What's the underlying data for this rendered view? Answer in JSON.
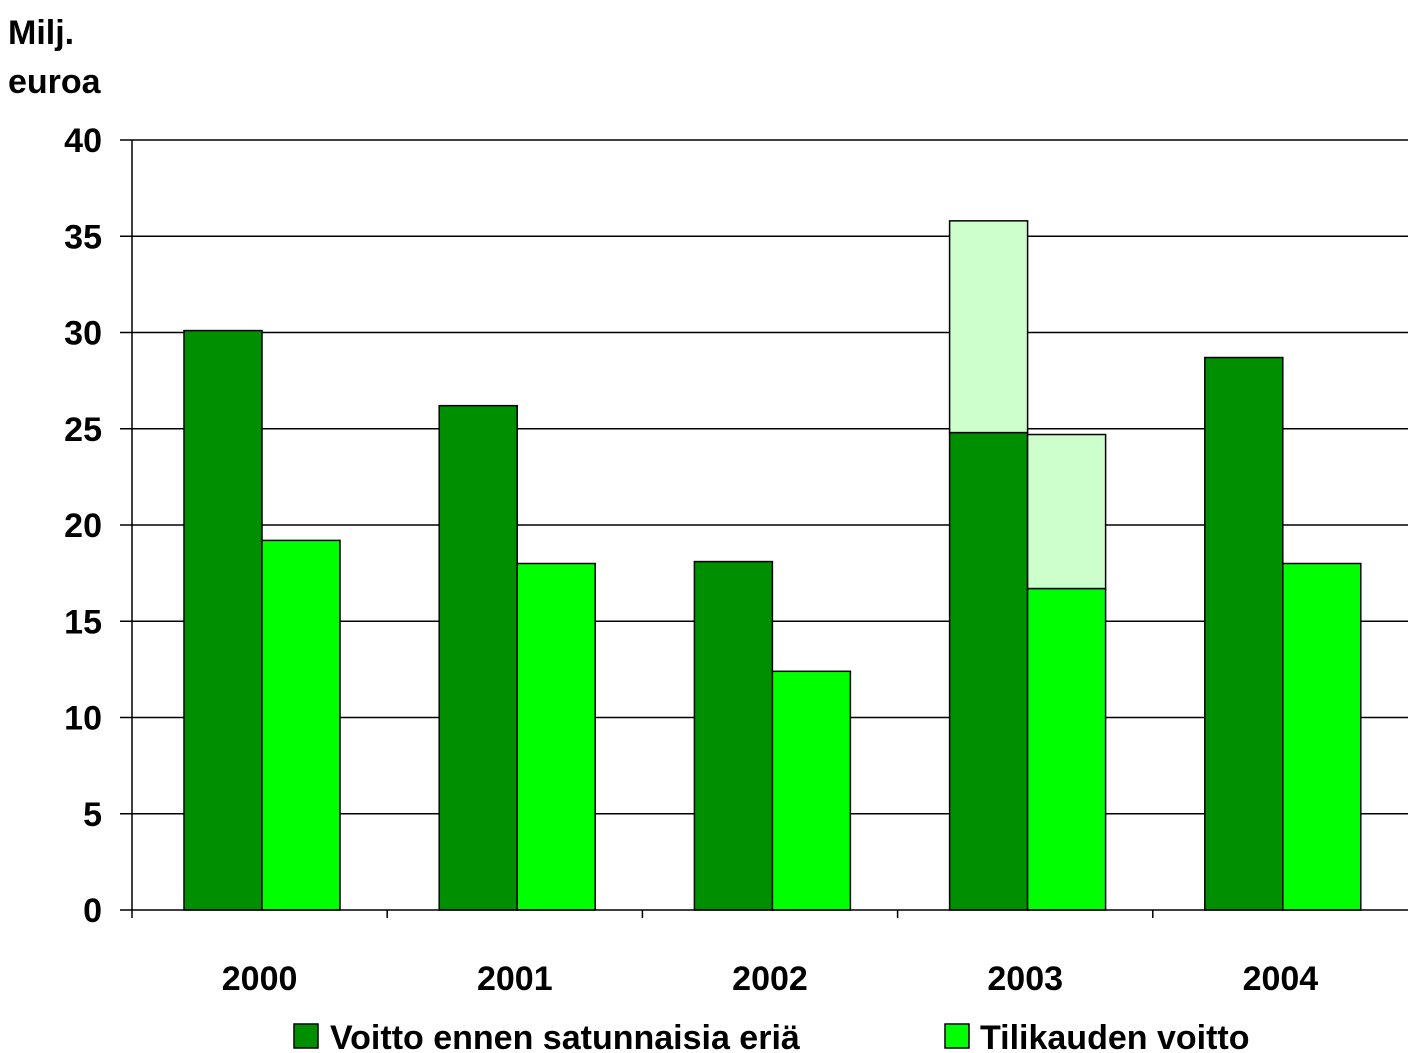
{
  "chart_data": {
    "type": "bar",
    "ylabel": [
      "Milj.",
      "euroa"
    ],
    "xlabel": "",
    "ylim": [
      0,
      40
    ],
    "yticks": [
      0,
      5,
      10,
      15,
      20,
      25,
      30,
      35,
      40
    ],
    "grid": true,
    "legend_position": "bottom",
    "categories": [
      "2000",
      "2001",
      "2002",
      "2003",
      "2004"
    ],
    "series": [
      {
        "name": "Voitto ennen satunnaisia eriä",
        "color": "#008f00",
        "values": [
          30.1,
          26.2,
          18.1,
          24.8,
          28.7
        ],
        "stacked_extra": [
          0,
          0,
          0,
          11.0,
          0
        ],
        "extra_color": "#ccffcc"
      },
      {
        "name": "Tilikauden voitto",
        "color": "#00ff00",
        "values": [
          19.2,
          18.0,
          12.4,
          16.7,
          18.0
        ],
        "stacked_extra": [
          0,
          0,
          0,
          8.0,
          0
        ],
        "extra_color": "#ccffcc"
      }
    ]
  }
}
